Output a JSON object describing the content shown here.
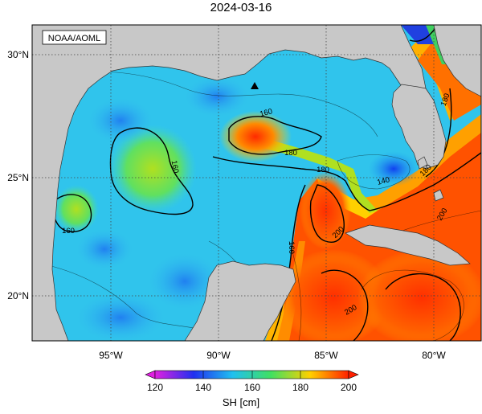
{
  "title": "2024-03-16",
  "credit": "NOAA/AOML",
  "lat_labels": [
    "30°N",
    "25°N",
    "20°N"
  ],
  "lon_labels": [
    "95°W",
    "90°W",
    "85°W",
    "80°W"
  ],
  "contour_labels": [
    "160",
    "160",
    "160",
    "180",
    "180",
    "180",
    "160",
    "140",
    "180",
    "200",
    "200",
    "200"
  ],
  "colorbar": {
    "ticks": [
      "120",
      "140",
      "160",
      "180",
      "200"
    ],
    "unit": "SH [cm]",
    "stops": [
      "#e020e0",
      "#2030f0",
      "#20d0e0",
      "#a0e020",
      "#ffd000",
      "#ff3000"
    ]
  },
  "marker": "triangle-marker"
}
